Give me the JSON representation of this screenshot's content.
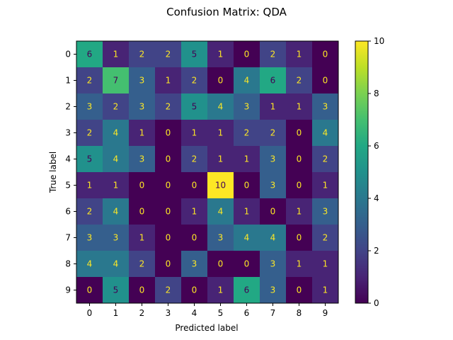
{
  "chart_data": {
    "type": "heatmap",
    "title": "Confusion Matrix: QDA",
    "xlabel": "Predicted label",
    "ylabel": "True label",
    "x_categories": [
      "0",
      "1",
      "2",
      "3",
      "4",
      "5",
      "6",
      "7",
      "8",
      "9"
    ],
    "y_categories": [
      "0",
      "1",
      "2",
      "3",
      "4",
      "5",
      "6",
      "7",
      "8",
      "9"
    ],
    "matrix": [
      [
        6,
        1,
        2,
        2,
        5,
        1,
        0,
        2,
        1,
        0
      ],
      [
        2,
        7,
        3,
        1,
        2,
        0,
        4,
        6,
        2,
        0
      ],
      [
        3,
        2,
        3,
        2,
        5,
        4,
        3,
        1,
        1,
        3
      ],
      [
        2,
        4,
        1,
        0,
        1,
        1,
        2,
        2,
        0,
        4
      ],
      [
        5,
        4,
        3,
        0,
        2,
        1,
        1,
        3,
        0,
        2
      ],
      [
        1,
        1,
        0,
        0,
        0,
        10,
        0,
        3,
        0,
        1
      ],
      [
        2,
        4,
        0,
        0,
        1,
        4,
        1,
        0,
        1,
        3
      ],
      [
        3,
        3,
        1,
        0,
        0,
        3,
        4,
        4,
        0,
        2
      ],
      [
        4,
        4,
        2,
        0,
        3,
        0,
        0,
        3,
        1,
        1
      ],
      [
        0,
        5,
        0,
        2,
        0,
        1,
        6,
        3,
        0,
        1
      ]
    ],
    "colormap": "viridis",
    "vmin": 0,
    "vmax": 10,
    "colorbar_ticks": [
      "0",
      "2",
      "4",
      "6",
      "8",
      "10"
    ],
    "text_color_dark": "#fde725",
    "text_color_light": "#440154"
  }
}
